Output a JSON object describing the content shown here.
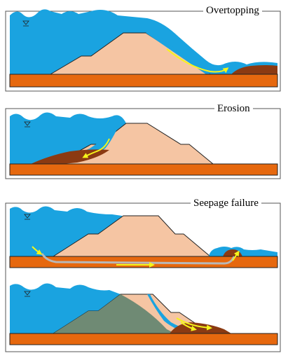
{
  "panels": {
    "overtopping": {
      "title": "Overtopping"
    },
    "erosion": {
      "title": "Erosion"
    },
    "seepage": {
      "title": "Seepage failure"
    }
  },
  "colors": {
    "water": "#1aa3e0",
    "foundation": "#e6680e",
    "dam_fill": "#f5c5a3",
    "eroded_soil": "#8b3a12",
    "failed_mass": "#6f8a74",
    "seepage_path": "#b8b8b8",
    "flow_arrow": "#f5f51a",
    "frame": "#555555"
  },
  "icons": {
    "water_level": "water-level-triangle-icon",
    "flow": "flow-arrow-icon"
  }
}
